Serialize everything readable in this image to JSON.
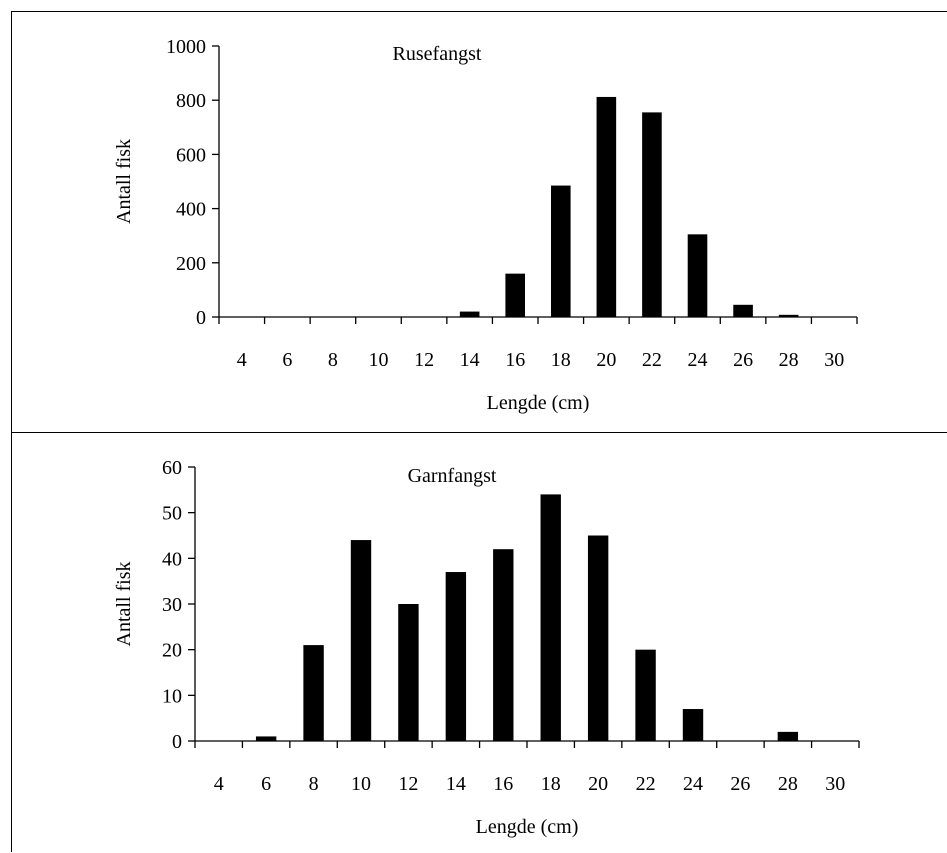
{
  "chart_data": [
    {
      "type": "bar",
      "title": "Rusefangst",
      "xlabel": "Lengde (cm)",
      "ylabel": "Antall fisk",
      "categories": [
        "4",
        "6",
        "8",
        "10",
        "12",
        "14",
        "16",
        "18",
        "20",
        "22",
        "24",
        "26",
        "28",
        "30"
      ],
      "values": [
        0,
        0,
        0,
        0,
        0,
        20,
        160,
        485,
        812,
        755,
        305,
        45,
        8,
        0
      ],
      "ylim": [
        0,
        1000
      ],
      "yticks": [
        "0",
        "200",
        "400",
        "600",
        "800",
        "1000"
      ],
      "yticks_values": [
        0,
        200,
        400,
        600,
        800,
        1000
      ],
      "bar_color": "#000000",
      "grid": false,
      "legend": "none"
    },
    {
      "type": "bar",
      "title": "Garnfangst",
      "xlabel": "Lengde (cm)",
      "ylabel": "Antall fisk",
      "categories": [
        "4",
        "6",
        "8",
        "10",
        "12",
        "14",
        "16",
        "18",
        "20",
        "22",
        "24",
        "26",
        "28",
        "30"
      ],
      "values": [
        0,
        1,
        21,
        44,
        30,
        37,
        42,
        54,
        45,
        20,
        7,
        0,
        2,
        0
      ],
      "ylim": [
        0,
        60
      ],
      "yticks": [
        "0",
        "10",
        "20",
        "30",
        "40",
        "50",
        "60"
      ],
      "yticks_values": [
        0,
        10,
        20,
        30,
        40,
        50,
        60
      ],
      "bar_color": "#000000",
      "grid": false,
      "legend": "none"
    }
  ]
}
